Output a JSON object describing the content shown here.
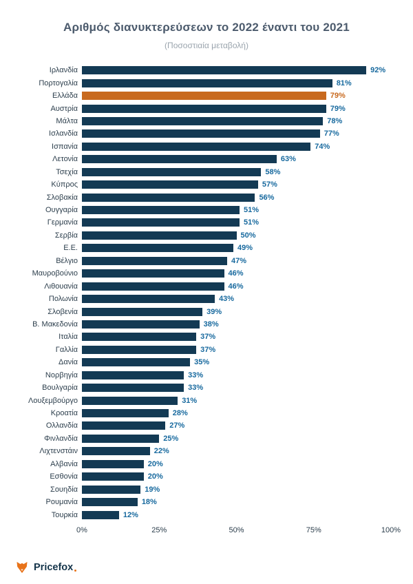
{
  "header": {
    "title": "Αριθμός διανυκτερεύσεων το 2022 έναντι του 2021",
    "subtitle": "(Ποσοστιαία μεταβολή)"
  },
  "chart_data": {
    "type": "bar",
    "orientation": "horizontal",
    "title": "Αριθμός διανυκτερεύσεων το 2022 έναντι του 2021",
    "subtitle": "(Ποσοστιαία μεταβολή)",
    "unit": "%",
    "xlim": [
      0,
      100
    ],
    "x_ticks": [
      "0%",
      "25%",
      "50%",
      "75%",
      "100%"
    ],
    "x_tick_positions": [
      0,
      25,
      50,
      75,
      100
    ],
    "grid": false,
    "legend": false,
    "categories": [
      "Ιρλανδία",
      "Πορτογαλία",
      "Ελλάδα",
      "Αυστρία",
      "Μάλτα",
      "Ισλανδία",
      "Ισπανία",
      "Λετονία",
      "Τσεχία",
      "Κύπρος",
      "Σλοβακία",
      "Ουγγαρία",
      "Γερμανία",
      "Σερβία",
      "Ε.Ε.",
      "Βέλγιο",
      "Μαυροβούνιο",
      "Λιθουανία",
      "Πολωνία",
      "Σλοβενία",
      "Β. Μακεδονία",
      "Ιταλία",
      "Γαλλία",
      "Δανία",
      "Νορβηγία",
      "Βουλγαρία",
      "Λουξεμβούργο",
      "Κροατία",
      "Ολλανδία",
      "Φινλανδία",
      "Λιχτενστάιν",
      "Αλβανία",
      "Εσθονία",
      "Σουηδία",
      "Ρουμανία",
      "Τουρκία"
    ],
    "values": [
      92,
      81,
      79,
      79,
      78,
      77,
      74,
      63,
      58,
      57,
      56,
      51,
      51,
      50,
      49,
      47,
      46,
      46,
      43,
      39,
      38,
      37,
      37,
      35,
      33,
      33,
      31,
      28,
      27,
      25,
      22,
      20,
      20,
      19,
      18,
      12
    ],
    "value_labels": [
      "92%",
      "81%",
      "79%",
      "79%",
      "78%",
      "77%",
      "74%",
      "63%",
      "58%",
      "57%",
      "56%",
      "51%",
      "51%",
      "50%",
      "49%",
      "47%",
      "46%",
      "46%",
      "43%",
      "39%",
      "38%",
      "37%",
      "37%",
      "35%",
      "33%",
      "33%",
      "31%",
      "28%",
      "27%",
      "25%",
      "22%",
      "20%",
      "20%",
      "19%",
      "18%",
      "12%"
    ],
    "highlight_index": 2,
    "highlight_category": "Ελλάδα",
    "colors": {
      "bar": "#133a54",
      "highlight_bar": "#c8691e",
      "value_label": "#17699e",
      "highlight_value_label": "#c8691e",
      "title": "#4c5b6d",
      "subtitle": "#9aa4ad"
    }
  },
  "footer": {
    "brand": "Pricefox"
  }
}
